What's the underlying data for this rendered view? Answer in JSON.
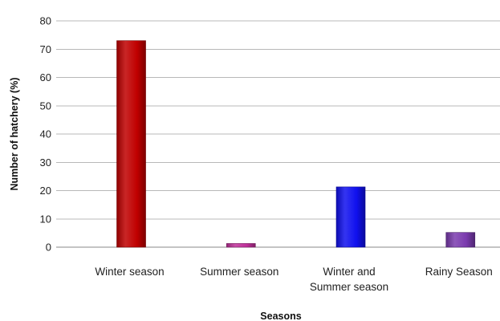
{
  "chart_data": {
    "type": "bar",
    "title": "",
    "xlabel": "Seasons",
    "ylabel": "Number of hatchery (%)",
    "categories": [
      [
        "Winter season"
      ],
      [
        "Summer season"
      ],
      [
        "Winter and",
        "Summer season"
      ],
      [
        "Rainy Season"
      ]
    ],
    "values": [
      73,
      1.3,
      21.3,
      5.2
    ],
    "colors": [
      "#c00000",
      "#c0309a",
      "#1010ee",
      "#7a3aae"
    ],
    "ylim": [
      0,
      80
    ],
    "yticks": [
      0,
      10,
      20,
      30,
      40,
      50,
      60,
      70,
      80
    ],
    "grid": true,
    "legend": "none"
  }
}
